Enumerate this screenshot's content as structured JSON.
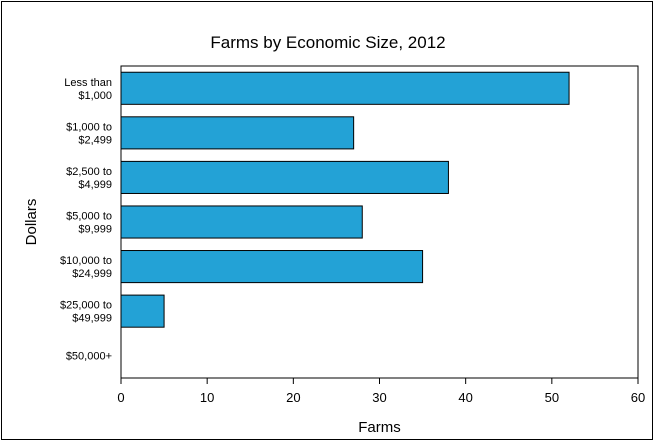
{
  "chart_data": {
    "type": "bar",
    "orientation": "horizontal",
    "title": "Farms by Economic Size, 2012",
    "xlabel": "Farms",
    "ylabel": "Dollars",
    "categories": [
      [
        "Less than",
        "$1,000"
      ],
      [
        "$1,000 to",
        "$2,499"
      ],
      [
        "$2,500 to",
        "$4,999"
      ],
      [
        "$5,000 to",
        "$9,999"
      ],
      [
        "$10,000 to",
        "$24,999"
      ],
      [
        "$25,000 to",
        "$49,999"
      ],
      [
        "$50,000+"
      ]
    ],
    "values": [
      52,
      27,
      38,
      28,
      35,
      5,
      0
    ],
    "xlim": [
      0,
      60
    ],
    "xticks": [
      0,
      10,
      20,
      30,
      40,
      50,
      60
    ],
    "grid": false,
    "bar_color": "#23a2d6"
  }
}
